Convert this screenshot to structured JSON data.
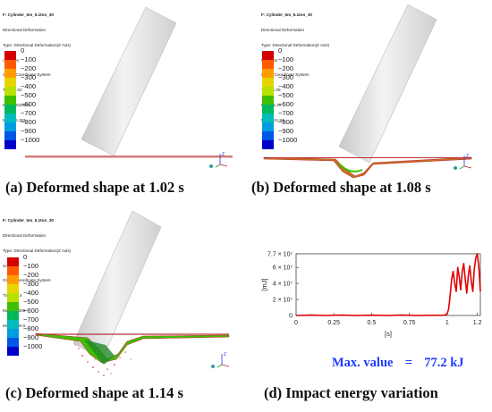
{
  "panels": [
    {
      "header": {
        "title": "F: Cylinder_5m_5.1ton_30",
        "lines": [
          "Directional Deformation",
          "Type: Directional Deformation(Z Axis)",
          "Unit: mm",
          "Global Coordinate System",
          "Time: 1.02",
          "Max: 0.012873",
          "Min: -46.153"
        ]
      },
      "legend": [
        "0",
        "−100",
        "−200",
        "−300",
        "−400",
        "−500",
        "−600",
        "−700",
        "−800",
        "−900",
        "−1000"
      ],
      "caption": "(a) Deformed shape at 1.02 s"
    },
    {
      "header": {
        "title": "F: Cylinder_5m_5.1ton_30",
        "lines": [
          "Directional Deformation",
          "Type: Directional Deformation(Z Axis)",
          "Unit: mm",
          "Global Coordinate System",
          "Time: 1.08",
          "Max: 11.26",
          "Min: -421.94"
        ]
      },
      "legend": [
        "0",
        "−100",
        "−200",
        "−300",
        "−400",
        "−500",
        "−600",
        "−700",
        "−800",
        "−900",
        "−1000"
      ],
      "caption": "(b) Deformed shape at 1.08 s"
    },
    {
      "header": {
        "title": "F: Cylinder_5m_5.1ton_30",
        "lines": [
          "Directional Deformation",
          "Type: Directional Deformation(Z Axis)",
          "Unit: mm",
          "Global Coordinate System",
          "Time: 1.14",
          "Max: 2.7009",
          "Min: -2400.5"
        ]
      },
      "legend": [
        "0",
        "−100",
        "−200",
        "−300",
        "−400",
        "−500",
        "−600",
        "−700",
        "−800",
        "−900",
        "−1000"
      ],
      "caption": "(c) Deformed shape at 1.14 s"
    }
  ],
  "legend_colors": [
    "#d40000",
    "#ff5a00",
    "#ff9d00",
    "#e8d400",
    "#b8e000",
    "#3fbf00",
    "#00b85c",
    "#00bcbc",
    "#009de0",
    "#0057e6",
    "#0000c8"
  ],
  "axis_triad": {
    "z": "Z",
    "x": "X",
    "y": "Y"
  },
  "energy_chart": {
    "ylabel": "[mJ]",
    "xlabel": "[s]",
    "yticks": [
      "7.7 × 10⁷",
      "6 × 10⁷",
      "4 × 10⁷",
      "2 × 10⁷",
      "0"
    ],
    "xticks": [
      "0",
      "0.25",
      "0.5",
      "0.75",
      "1",
      "1.2"
    ],
    "caption": "(d) Impact energy variation",
    "max_label": "Max. value",
    "max_eq": "=",
    "max_value": "77.2 kJ",
    "line_color": "#e00000"
  },
  "chart_data": {
    "type": "line",
    "title": "",
    "xlabel": "[s]",
    "ylabel": "[mJ]",
    "xlim": [
      0,
      1.22
    ],
    "ylim": [
      0,
      77000000
    ],
    "series": [
      {
        "x": [
          0,
          0.1,
          0.2,
          0.3,
          0.4,
          0.5,
          0.6,
          0.7,
          0.8,
          0.9,
          0.98,
          1.0,
          1.01,
          1.02,
          1.03,
          1.04,
          1.05,
          1.06,
          1.07,
          1.08,
          1.09,
          1.1,
          1.11,
          1.12,
          1.13,
          1.14,
          1.15,
          1.16,
          1.17,
          1.18,
          1.19,
          1.2,
          1.21,
          1.22
        ],
        "y": [
          0,
          400000,
          0,
          500000,
          0,
          300000,
          0,
          400000,
          0,
          200000,
          300000,
          2000000,
          8000000,
          25000000,
          45000000,
          55000000,
          40000000,
          30000000,
          60000000,
          48000000,
          32000000,
          55000000,
          65000000,
          45000000,
          28000000,
          50000000,
          62000000,
          42000000,
          30000000,
          58000000,
          72000000,
          77000000,
          60000000,
          30000000
        ]
      }
    ]
  }
}
